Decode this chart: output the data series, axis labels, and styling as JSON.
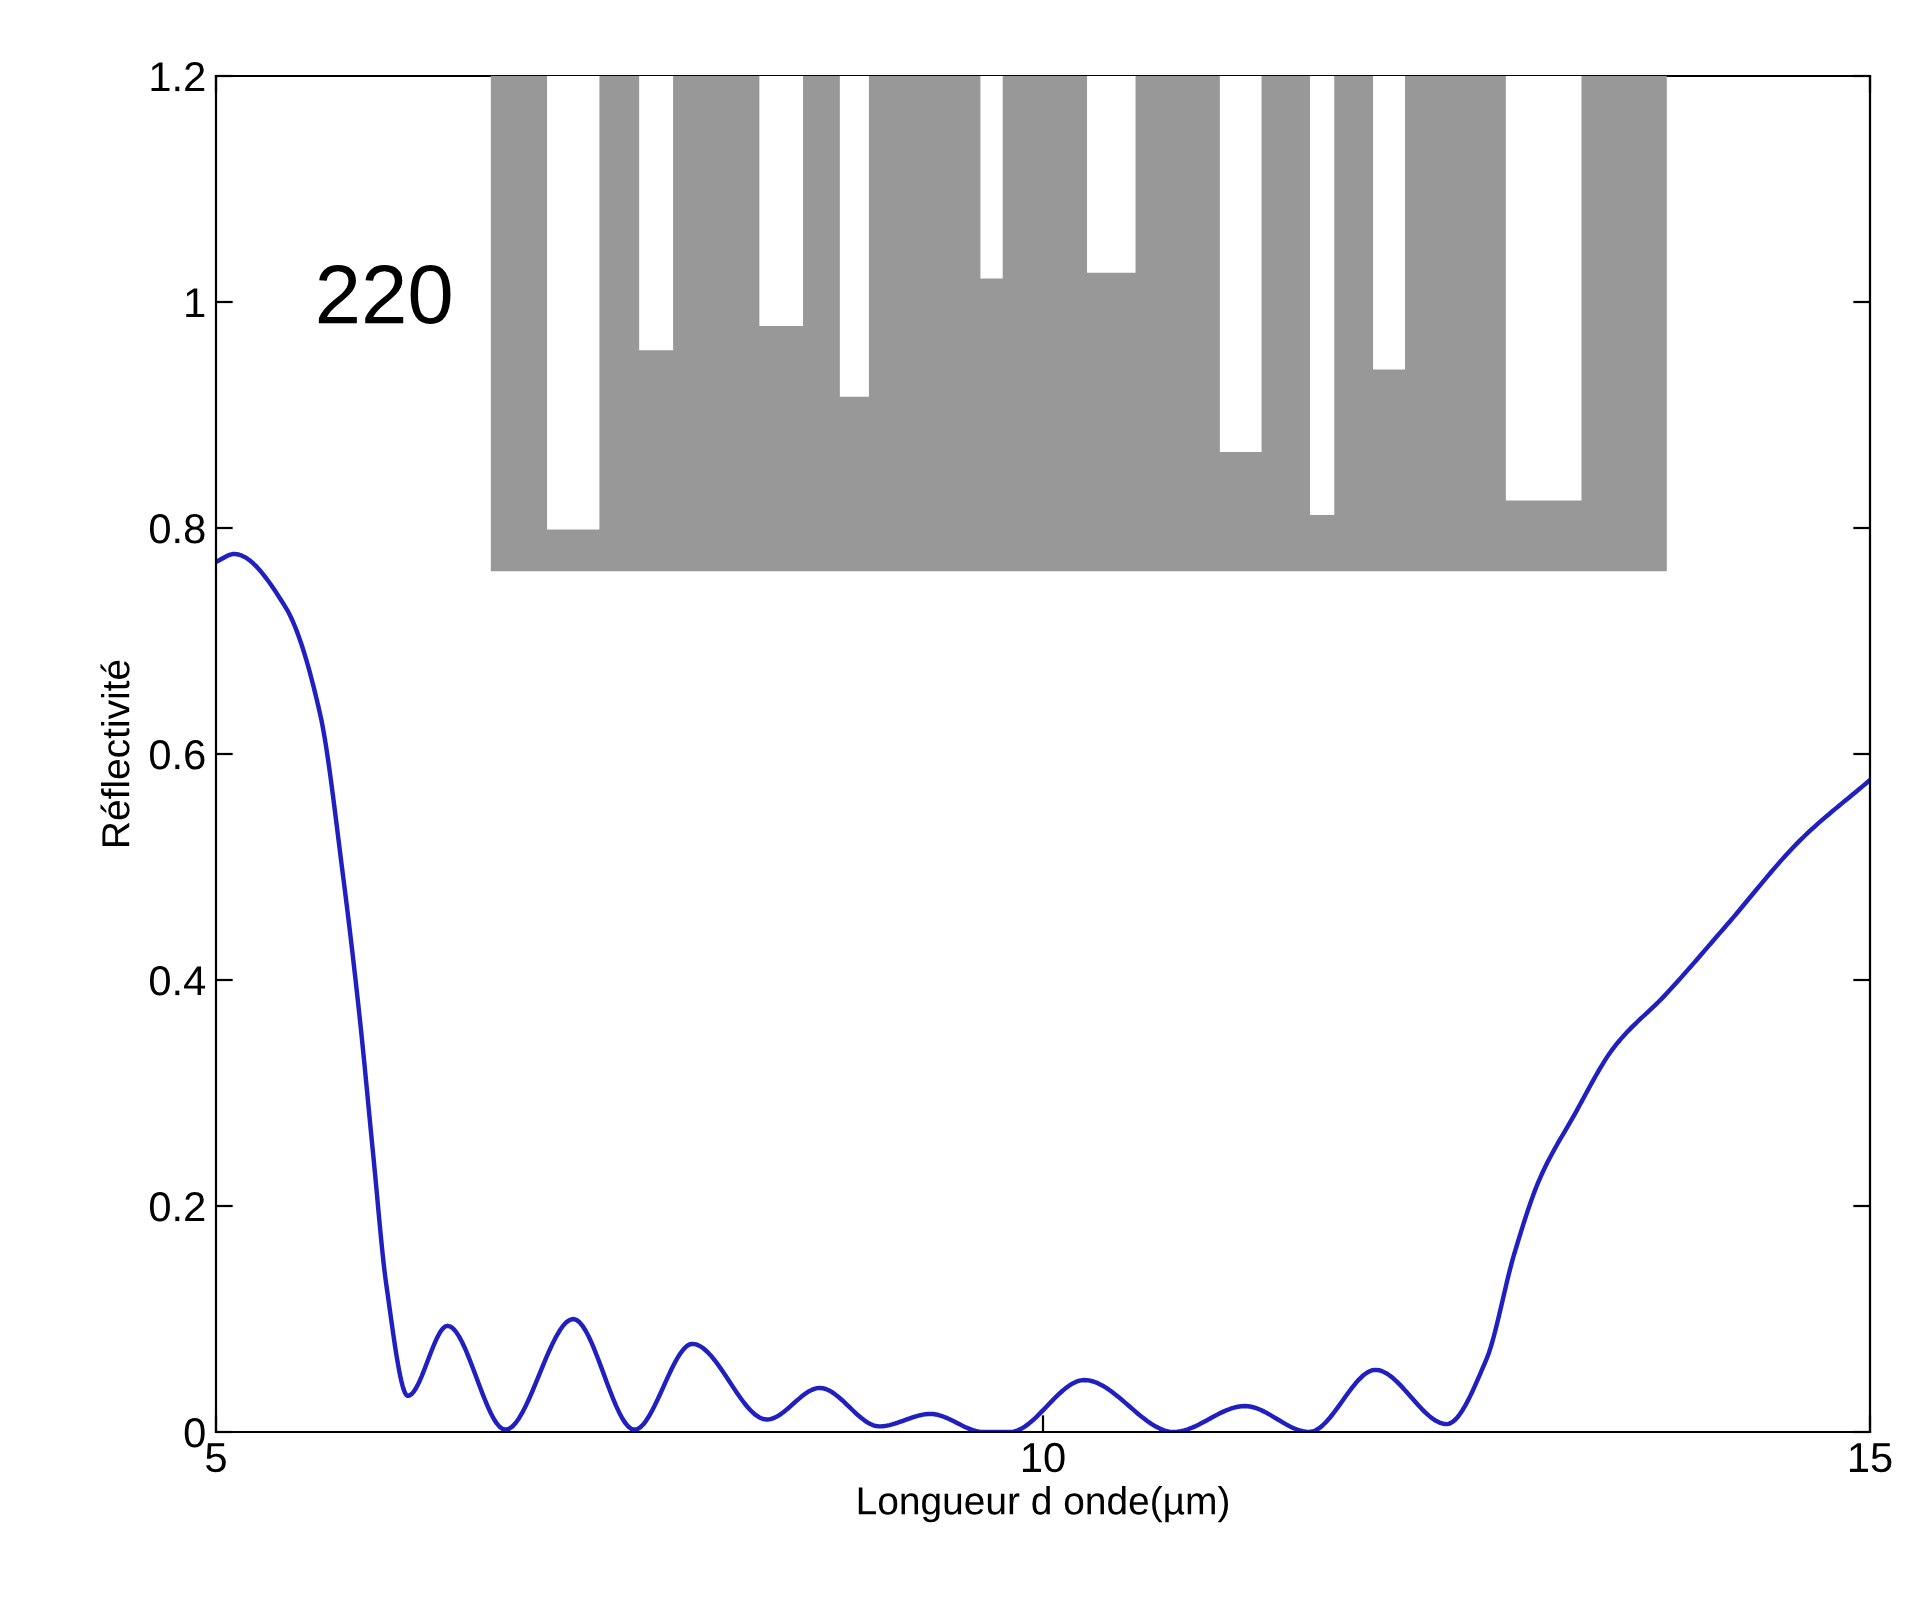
{
  "chart_data": {
    "type": "line",
    "xlabel": "Longueur d onde(µm)",
    "ylabel": "Réflectivité",
    "x": [
      5.0,
      5.11,
      5.42,
      5.63,
      5.77,
      5.87,
      5.95,
      6.03,
      6.16,
      6.4,
      6.75,
      7.16,
      7.53,
      7.88,
      8.33,
      8.65,
      9.01,
      9.32,
      9.64,
      9.8,
      10.25,
      10.79,
      11.22,
      11.61,
      12.01,
      12.44,
      12.68,
      12.85,
      13.0,
      13.21,
      13.45,
      13.77,
      14.13,
      14.58,
      15.0
    ],
    "series": [
      {
        "color": "#2020c0",
        "values": [
          0.77,
          0.777,
          0.73,
          0.635,
          0.49,
          0.365,
          0.246,
          0.13,
          0.032,
          0.094,
          0.002,
          0.1,
          0.002,
          0.078,
          0.011,
          0.039,
          0.005,
          0.016,
          0.0,
          0.0,
          0.046,
          0.0,
          0.023,
          0.0,
          0.055,
          0.007,
          0.064,
          0.158,
          0.223,
          0.28,
          0.34,
          0.388,
          0.448,
          0.524,
          0.577
        ]
      }
    ],
    "xlim": [
      5,
      15
    ],
    "ylim": [
      0,
      1.2
    ],
    "xticks": [
      5,
      10,
      15
    ],
    "yticks": [
      0,
      0.2,
      0.4,
      0.6,
      0.8,
      1,
      1.2
    ],
    "grid": false,
    "marker": "none",
    "line_style": "solid",
    "annotations": [
      "220"
    ]
  }
}
